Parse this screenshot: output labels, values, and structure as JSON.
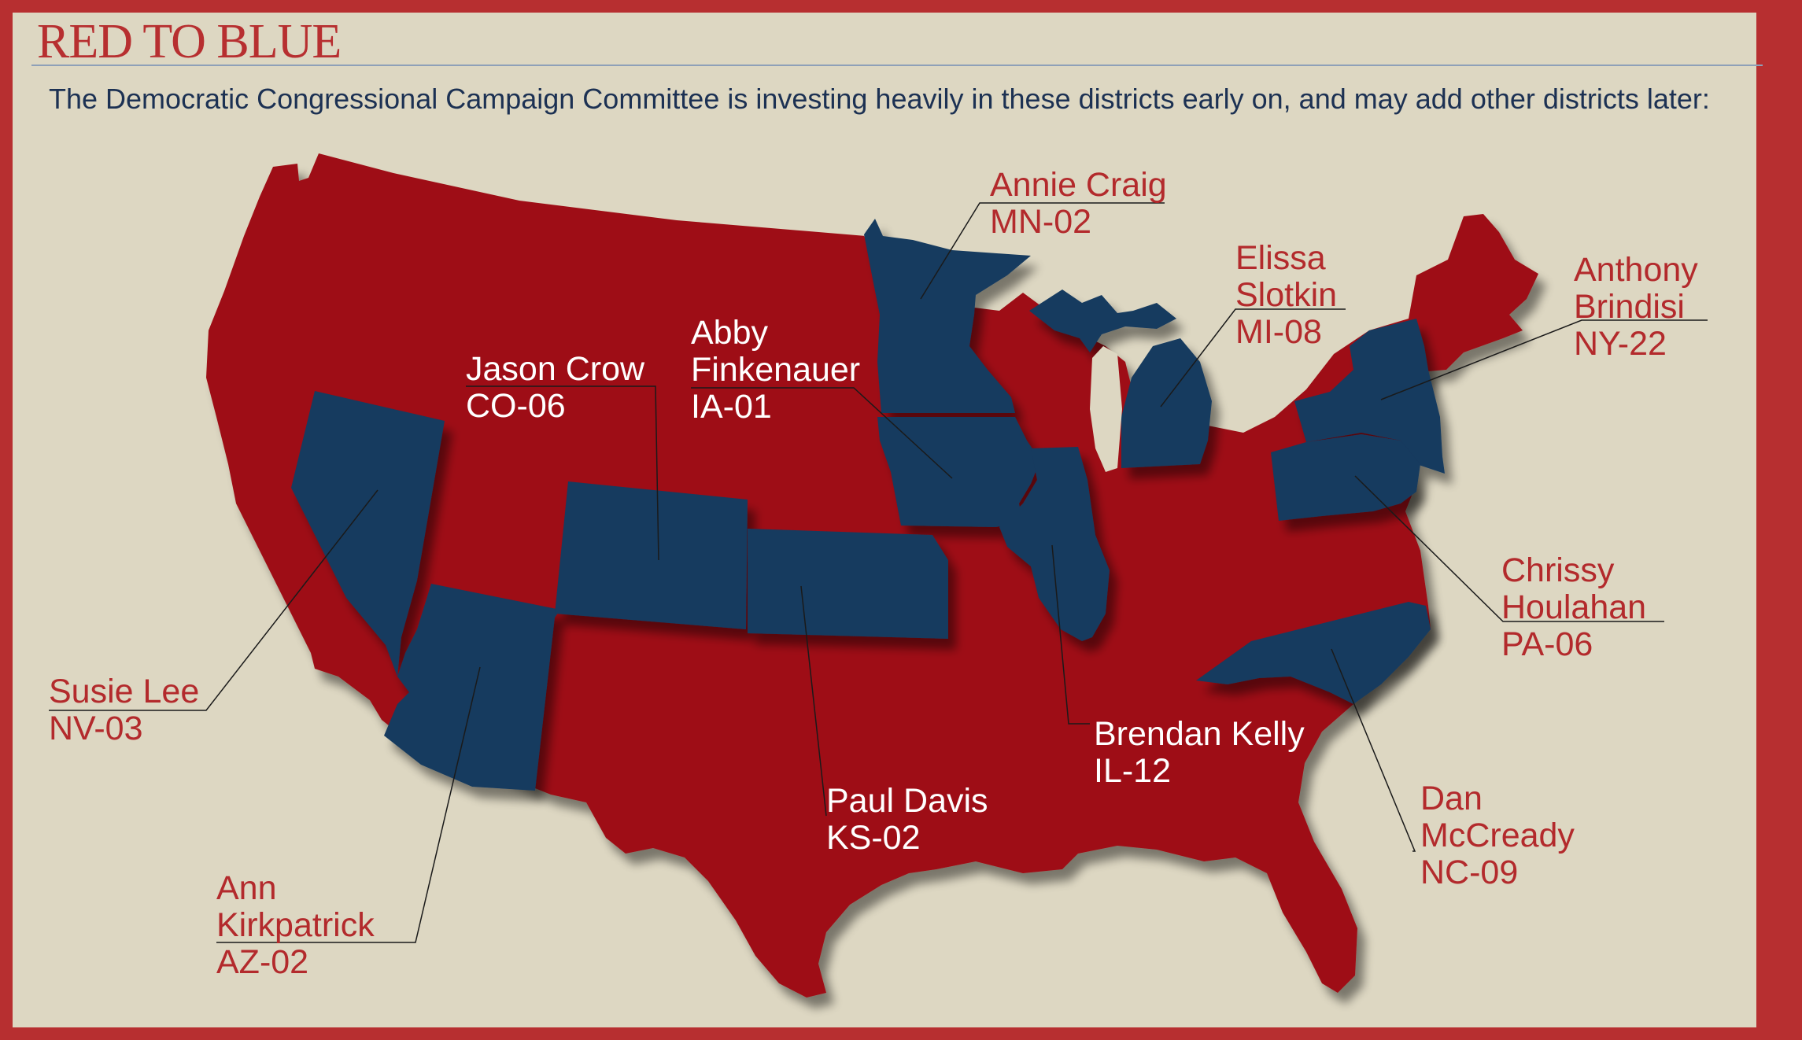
{
  "title": "RED TO BLUE",
  "subtitle": "The Democratic Congressional Campaign Committee is investing heavily in these districts early on, and may add other districts later:",
  "colors": {
    "border": "#b72f30",
    "background": "#ddd7c2",
    "red_states": "#9e0f14",
    "blue_states": "#173a5e",
    "label_red": "#b32a2c",
    "label_white": "#ffffff",
    "subtitle_text": "#1c3153"
  },
  "blue_states": [
    "Nevada",
    "Arizona",
    "Colorado",
    "Kansas",
    "Minnesota",
    "Iowa",
    "Illinois",
    "Michigan",
    "New York",
    "Pennsylvania",
    "North Carolina"
  ],
  "candidates": [
    {
      "name_lines": [
        "Annie Craig"
      ],
      "district": "MN-02",
      "state": "Minnesota"
    },
    {
      "name_lines": [
        "Elissa",
        "Slotkin"
      ],
      "district": "MI-08",
      "state": "Michigan"
    },
    {
      "name_lines": [
        "Anthony",
        "Brindisi"
      ],
      "district": "NY-22",
      "state": "New York"
    },
    {
      "name_lines": [
        "Jason Crow"
      ],
      "district": "CO-06",
      "state": "Colorado"
    },
    {
      "name_lines": [
        "Abby",
        "Finkenauer"
      ],
      "district": "IA-01",
      "state": "Iowa"
    },
    {
      "name_lines": [
        "Chrissy",
        "Houlahan"
      ],
      "district": "PA-06",
      "state": "Pennsylvania"
    },
    {
      "name_lines": [
        "Susie Lee"
      ],
      "district": "NV-03",
      "state": "Nevada"
    },
    {
      "name_lines": [
        "Brendan Kelly"
      ],
      "district": "IL-12",
      "state": "Illinois"
    },
    {
      "name_lines": [
        "Paul Davis"
      ],
      "district": "KS-02",
      "state": "Kansas"
    },
    {
      "name_lines": [
        "Dan",
        "McCready"
      ],
      "district": "NC-09",
      "state": "North Carolina"
    },
    {
      "name_lines": [
        "Ann",
        "Kirkpatrick"
      ],
      "district": "AZ-02",
      "state": "Arizona"
    }
  ]
}
